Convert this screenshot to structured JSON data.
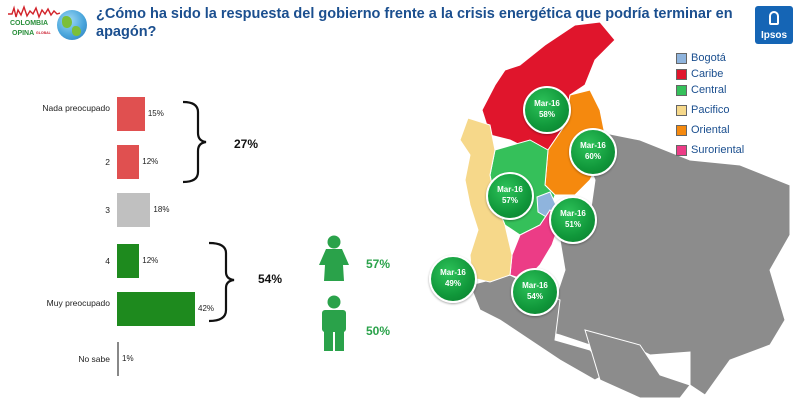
{
  "header": {
    "logo_line1": "COLOMBIA",
    "logo_line2": "OPINA",
    "logo_line3": "GLOBAL",
    "brand": "Ipsos",
    "title": "¿Cómo ha sido  la respuesta del gobierno frente a la crisis energética que podría terminar en apagón?"
  },
  "chart_data": {
    "type": "bar",
    "orientation": "horizontal",
    "categories": [
      "Nada preocupado",
      "2",
      "3",
      "4",
      "Muy preocupado",
      "No sabe"
    ],
    "values": [
      15,
      12,
      18,
      12,
      42,
      1
    ],
    "value_labels": [
      "15%",
      "12%",
      "18%",
      "12%",
      "42%",
      "1%"
    ],
    "bar_colors": [
      "#e05050",
      "#e05050",
      "#c0c0c0",
      "#1e8a1e",
      "#1e8a1e",
      "#888888"
    ],
    "xlim": [
      0,
      42
    ],
    "groups": [
      {
        "categories": [
          "Nada preocupado",
          "2"
        ],
        "total_label": "27%"
      },
      {
        "categories": [
          "4",
          "Muy preocupado"
        ],
        "total_label": "54%"
      }
    ],
    "gender": [
      {
        "icon": "female-icon",
        "value_label": "57%"
      },
      {
        "icon": "male-icon",
        "value_label": "50%"
      }
    ]
  },
  "map": {
    "legend": [
      {
        "label": "Bogotá",
        "color": "#8fb4dd"
      },
      {
        "label": "Caribe",
        "color": "#e0152c"
      },
      {
        "label": "Central",
        "color": "#35c05a"
      },
      {
        "label": "Pacifico",
        "color": "#f6d88a"
      },
      {
        "label": "Oriental",
        "color": "#f5890e"
      },
      {
        "label": "Suroriental",
        "color": "#ec3c86"
      }
    ],
    "regions": [
      {
        "name": "Caribe",
        "period": "Mar-16",
        "value_label": "58%"
      },
      {
        "name": "Oriental",
        "period": "Mar-16",
        "value_label": "60%"
      },
      {
        "name": "Central",
        "period": "Mar-16",
        "value_label": "57%"
      },
      {
        "name": "Bogotá",
        "period": "Mar-16",
        "value_label": "51%"
      },
      {
        "name": "Pacifico",
        "period": "Mar-16",
        "value_label": "49%"
      },
      {
        "name": "Suroriental",
        "period": "Mar-16",
        "value_label": "54%"
      }
    ]
  }
}
